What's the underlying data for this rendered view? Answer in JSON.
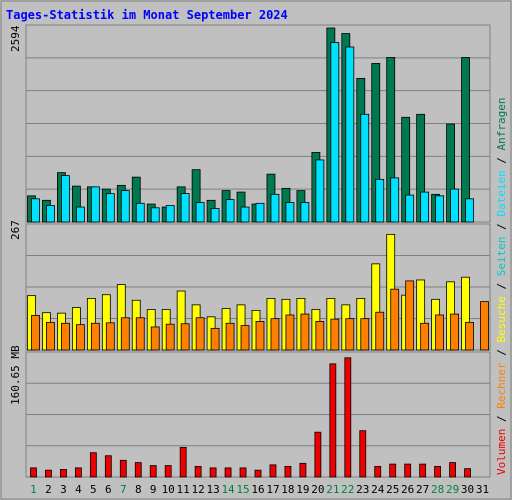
{
  "title": "Tages-Statistik im Monat September 2024",
  "colors": {
    "background": "#c0c0c0",
    "title": "#0000ff",
    "frame": "#808080",
    "grid": "#808080",
    "weekday": "#000000",
    "weekend": "#008040",
    "anfragen": "#007850",
    "dateien": "#00e0ff",
    "besuche": "#ffff00",
    "rechner": "#ff8000",
    "volumen": "#ee0000",
    "seiten": "#00c8c8"
  },
  "chart_data": {
    "type": "bar",
    "categories": [
      "1",
      "2",
      "3",
      "4",
      "5",
      "6",
      "7",
      "8",
      "9",
      "10",
      "11",
      "12",
      "13",
      "14",
      "15",
      "16",
      "17",
      "18",
      "19",
      "20",
      "21",
      "22",
      "23",
      "24",
      "25",
      "26",
      "27",
      "28",
      "29",
      "30",
      "31"
    ],
    "weekend_days": [
      "1",
      "7",
      "14",
      "15",
      "21",
      "22",
      "28",
      "29"
    ],
    "panels": [
      {
        "id": "top",
        "max_label": "2594",
        "ymax": 2594,
        "series": [
          {
            "name": "Anfragen",
            "color_key": "anfragen",
            "values": [
              350,
              290,
              660,
              480,
              470,
              440,
              490,
              600,
              240,
              200,
              470,
              700,
              290,
              420,
              400,
              240,
              640,
              450,
              420,
              930,
              2594,
              2520,
              1920,
              2120,
              2200,
              1400,
              1440,
              370,
              1310,
              2200,
              0
            ]
          },
          {
            "name": "Dateien",
            "color_key": "dateien",
            "values": [
              310,
              220,
              620,
              200,
              470,
              380,
              420,
              250,
              190,
              220,
              380,
              260,
              180,
              300,
              200,
              250,
              370,
              260,
              260,
              830,
              2400,
              2340,
              1440,
              570,
              590,
              360,
              400,
              350,
              440,
              310,
              0
            ]
          }
        ]
      },
      {
        "id": "middle",
        "max_label": "267",
        "ymax": 267,
        "series": [
          {
            "name": "Besuche",
            "color_key": "besuche",
            "values": [
              118,
              81,
              80,
              92,
              112,
              120,
              142,
              108,
              88,
              88,
              128,
              98,
              72,
              90,
              98,
              86,
              112,
              110,
              112,
              88,
              112,
              98,
              112,
              187,
              251,
              119,
              152,
              110,
              148,
              158,
              0
            ]
          },
          {
            "name": "Rechner",
            "color_key": "rechner",
            "values": [
              75,
              60,
              58,
              55,
              58,
              59,
              70,
              70,
              50,
              56,
              57,
              70,
              47,
              58,
              53,
              62,
              68,
              76,
              78,
              62,
              67,
              68,
              68,
              82,
              132,
              150,
              58,
              76,
              78,
              60,
              105
            ]
          }
        ]
      },
      {
        "id": "bottom",
        "max_label": "160.65 MB",
        "ymax": 160.65,
        "series": [
          {
            "name": "Volumen",
            "color_key": "volumen",
            "values": [
              12,
              9,
              10,
              12,
              32,
              28,
              22,
              19,
              15,
              15,
              39,
              14,
              12,
              12,
              12,
              9,
              16,
              14,
              18,
              59,
              149,
              157,
              61,
              14,
              17,
              17,
              17,
              14,
              19,
              11,
              0
            ]
          }
        ]
      }
    ],
    "legend_parts": [
      {
        "name": "Volumen",
        "color_key": "volumen"
      },
      {
        "name": "Rechner",
        "color_key": "rechner"
      },
      {
        "name": "Besuche",
        "color_key": "besuche"
      },
      {
        "name": "Seiten",
        "color_key": "seiten"
      },
      {
        "name": "Dateien",
        "color_key": "dateien"
      },
      {
        "name": "Anfragen",
        "color_key": "anfragen"
      }
    ]
  }
}
